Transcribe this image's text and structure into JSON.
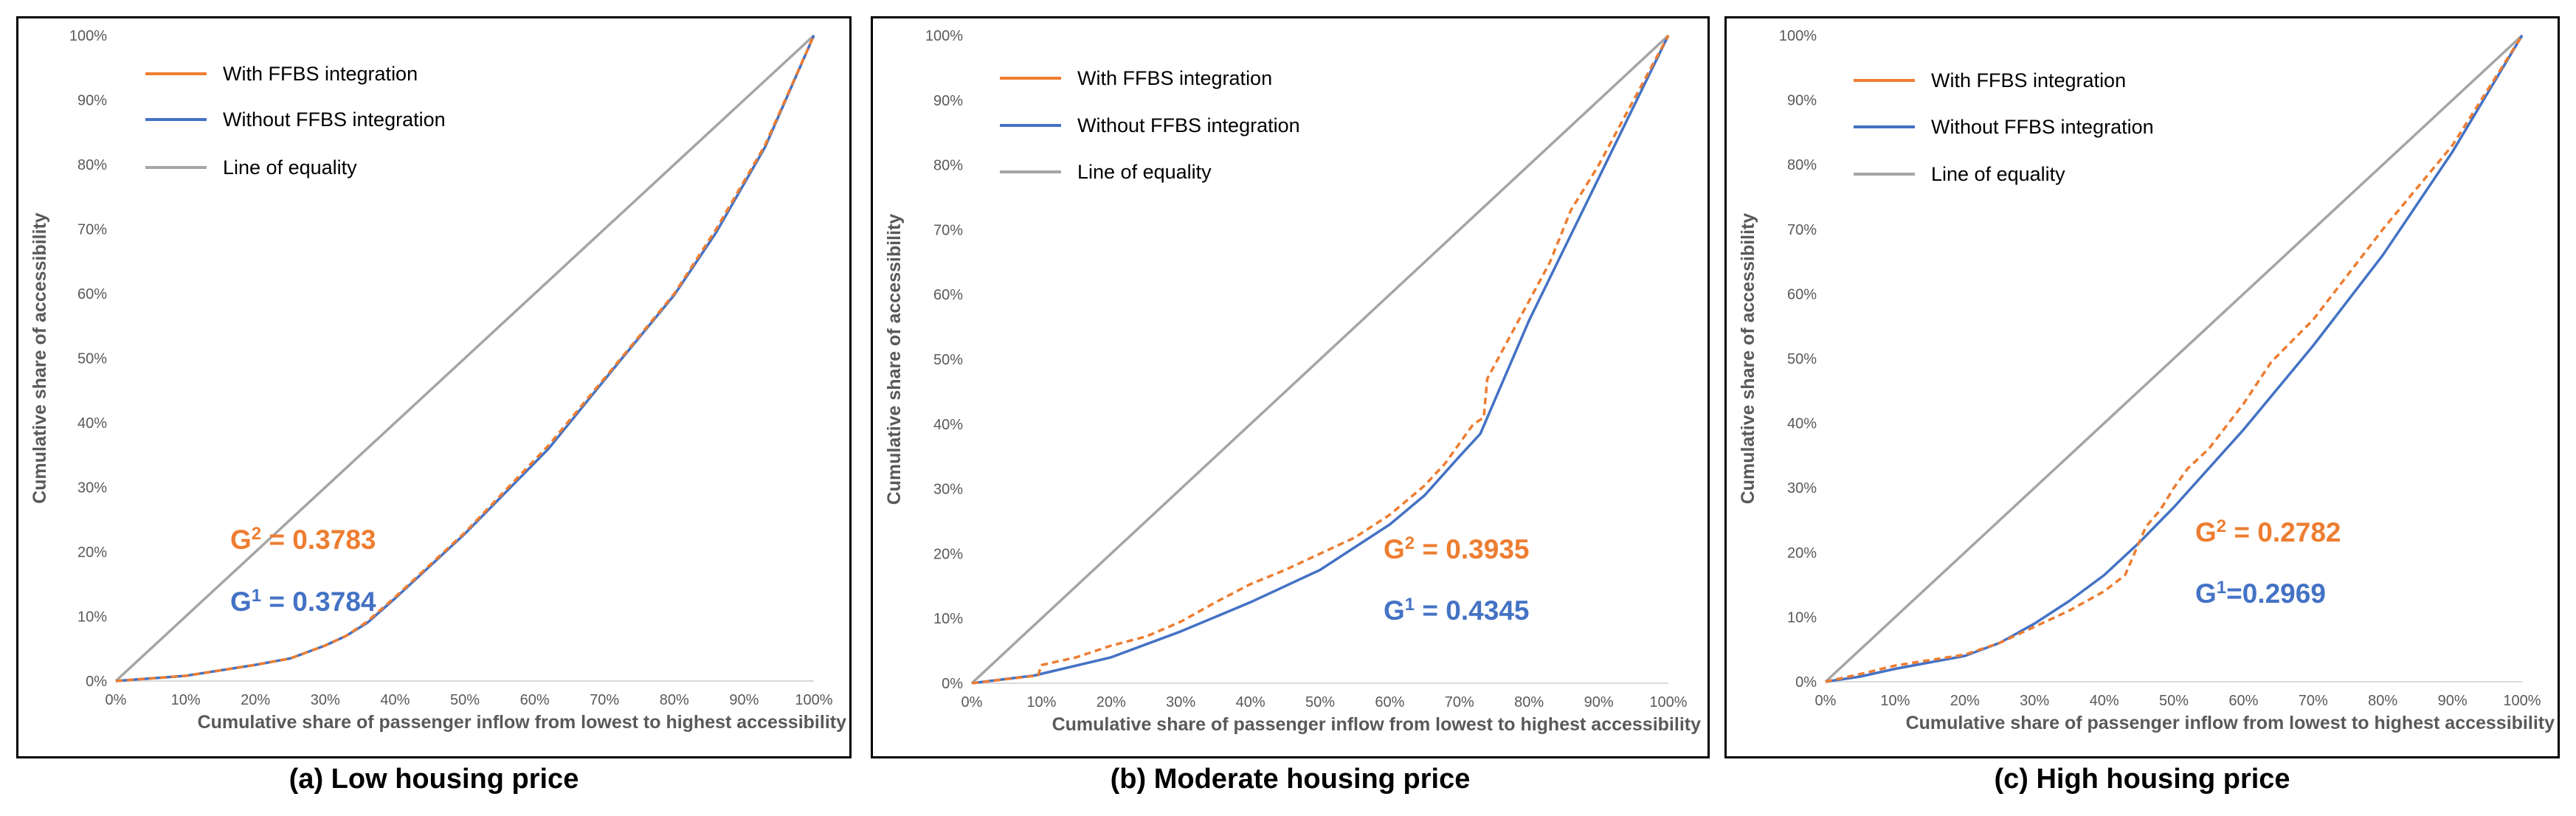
{
  "colors": {
    "with": "#ED7D31",
    "without": "#4472C4",
    "equality": "#A5A5A5",
    "axis_text": "#595959",
    "axis_title": "#595959",
    "g2": "#ED7D31",
    "g1": "#4472C4"
  },
  "chart_data": [
    {
      "type": "line",
      "panel": "a",
      "caption": "(a) Low housing price",
      "xlabel": "Cumulative share of passenger inflow from lowest to highest accessibility",
      "ylabel": "Cumulative share of accessibility",
      "xlim": [
        0,
        1
      ],
      "ylim": [
        0,
        1
      ],
      "ticks": [
        "0%",
        "10%",
        "20%",
        "30%",
        "40%",
        "50%",
        "60%",
        "70%",
        "80%",
        "90%",
        "100%"
      ],
      "legend": [
        "With FFBS integration",
        "Without FFBS integration",
        "Line of equality"
      ],
      "g2_label": "G",
      "g2_sup": "2",
      "g2_value": " = 0.3783",
      "g1_label": "G",
      "g1_sup": "1",
      "g1_value": " = 0.3784",
      "series": [
        {
          "name": "With FFBS integration",
          "style": "dashed",
          "x": [
            0,
            0.1,
            0.2,
            0.25,
            0.3,
            0.33,
            0.36,
            0.4,
            0.5,
            0.62,
            0.72,
            0.8,
            0.86,
            0.93,
            1.0
          ],
          "y": [
            0,
            0.008,
            0.025,
            0.035,
            0.055,
            0.07,
            0.092,
            0.13,
            0.23,
            0.365,
            0.495,
            0.6,
            0.7,
            0.83,
            1.0
          ]
        },
        {
          "name": "Without FFBS integration",
          "style": "solid",
          "x": [
            0,
            0.1,
            0.2,
            0.25,
            0.3,
            0.33,
            0.36,
            0.4,
            0.5,
            0.62,
            0.72,
            0.8,
            0.86,
            0.93,
            1.0
          ],
          "y": [
            0,
            0.008,
            0.025,
            0.035,
            0.055,
            0.07,
            0.09,
            0.128,
            0.228,
            0.36,
            0.493,
            0.598,
            0.695,
            0.827,
            1.0
          ]
        },
        {
          "name": "Line of equality",
          "style": "solid",
          "x": [
            0,
            1
          ],
          "y": [
            0,
            1
          ]
        }
      ]
    },
    {
      "type": "line",
      "panel": "b",
      "caption": "(b) Moderate housing price",
      "xlabel": "Cumulative share of passenger inflow from lowest to highest accessibility",
      "ylabel": "Cumulative share of accessibility",
      "xlim": [
        0,
        1
      ],
      "ylim": [
        0,
        1
      ],
      "ticks": [
        "0%",
        "10%",
        "20%",
        "30%",
        "40%",
        "50%",
        "60%",
        "70%",
        "80%",
        "90%",
        "100%"
      ],
      "legend": [
        "With FFBS integration",
        "Without FFBS integration",
        "Line of equality"
      ],
      "g2_label": "G",
      "g2_sup": "2",
      "g2_value": " = 0.3935",
      "g1_label": "G",
      "g1_sup": "1",
      "g1_value": " = 0.4345",
      "series": [
        {
          "name": "With FFBS integration",
          "style": "dashed",
          "x": [
            0,
            0.095,
            0.1,
            0.15,
            0.2,
            0.25,
            0.3,
            0.35,
            0.4,
            0.45,
            0.5,
            0.55,
            0.6,
            0.65,
            0.68,
            0.7,
            0.72,
            0.735,
            0.74,
            0.78,
            0.83,
            0.86,
            0.9,
            0.95,
            1.0
          ],
          "y": [
            0,
            0.012,
            0.028,
            0.04,
            0.058,
            0.072,
            0.095,
            0.125,
            0.153,
            0.175,
            0.2,
            0.225,
            0.26,
            0.305,
            0.34,
            0.37,
            0.4,
            0.41,
            0.47,
            0.55,
            0.65,
            0.73,
            0.8,
            0.9,
            1.0
          ]
        },
        {
          "name": "Without FFBS integration",
          "style": "solid",
          "x": [
            0,
            0.09,
            0.2,
            0.3,
            0.4,
            0.5,
            0.6,
            0.65,
            0.7,
            0.73,
            0.8,
            0.9,
            1.0
          ],
          "y": [
            0,
            0.012,
            0.04,
            0.08,
            0.125,
            0.175,
            0.245,
            0.29,
            0.35,
            0.385,
            0.56,
            0.78,
            1.0
          ]
        },
        {
          "name": "Line of equality",
          "style": "solid",
          "x": [
            0,
            1
          ],
          "y": [
            0,
            1
          ]
        }
      ]
    },
    {
      "type": "line",
      "panel": "c",
      "caption": "(c) High housing price",
      "xlabel": "Cumulative share of passenger inflow from lowest to highest accessibility",
      "ylabel": "Cumulative share of accessibility",
      "xlim": [
        0,
        1
      ],
      "ylim": [
        0,
        1
      ],
      "ticks": [
        "0%",
        "10%",
        "20%",
        "30%",
        "40%",
        "50%",
        "60%",
        "70%",
        "80%",
        "90%",
        "100%"
      ],
      "legend": [
        "With FFBS integration",
        "Without FFBS integration",
        "Line of equality"
      ],
      "g2_label": "G",
      "g2_sup": "2",
      "g2_value": " = 0.2782",
      "g1_label": "G",
      "g1_sup": "1",
      "g1_value": "=0.2969",
      "series": [
        {
          "name": "With FFBS integration",
          "style": "dashed",
          "x": [
            0,
            0.05,
            0.1,
            0.2,
            0.25,
            0.3,
            0.35,
            0.4,
            0.43,
            0.46,
            0.48,
            0.5,
            0.52,
            0.55,
            0.6,
            0.64,
            0.7,
            0.8,
            0.9,
            1.0
          ],
          "y": [
            0,
            0.012,
            0.025,
            0.042,
            0.06,
            0.085,
            0.11,
            0.14,
            0.165,
            0.24,
            0.265,
            0.3,
            0.33,
            0.36,
            0.43,
            0.495,
            0.56,
            0.7,
            0.83,
            1.0
          ]
        },
        {
          "name": "Without FFBS integration",
          "style": "solid",
          "x": [
            0,
            0.05,
            0.1,
            0.2,
            0.25,
            0.3,
            0.35,
            0.4,
            0.45,
            0.5,
            0.6,
            0.7,
            0.8,
            0.9,
            1.0
          ],
          "y": [
            0,
            0.008,
            0.02,
            0.04,
            0.06,
            0.09,
            0.125,
            0.165,
            0.215,
            0.27,
            0.39,
            0.52,
            0.66,
            0.82,
            1.0
          ]
        },
        {
          "name": "Line of equality",
          "style": "solid",
          "x": [
            0,
            1
          ],
          "y": [
            0,
            1
          ]
        }
      ]
    }
  ]
}
